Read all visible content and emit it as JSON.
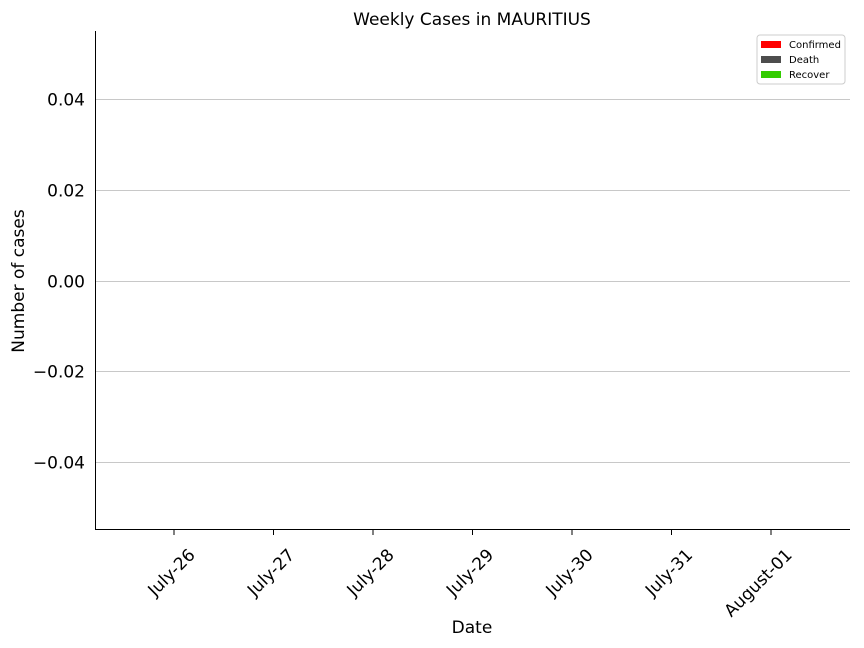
{
  "chart_data": {
    "type": "bar",
    "title": "Weekly Cases in MAURITIUS",
    "xlabel": "Date",
    "ylabel": "Number of cases",
    "categories": [
      "July-26",
      "July-27",
      "July-28",
      "July-29",
      "July-30",
      "July-31",
      "August-01"
    ],
    "ylim": [
      -0.055,
      0.055
    ],
    "yticks": [
      0.04,
      0.02,
      0.0,
      -0.02,
      -0.04
    ],
    "ytick_labels": [
      "0.04",
      "0.02",
      "0.00",
      "−0.02",
      "−0.04"
    ],
    "grid": "horizontal",
    "legend_position": "top-right",
    "series": [
      {
        "name": "Confirmed",
        "color": "#ff0000",
        "values": [
          0,
          0,
          0,
          0,
          0,
          0,
          0
        ]
      },
      {
        "name": "Death",
        "color": "#4d4d4d",
        "values": [
          0,
          0,
          0,
          0,
          0,
          0,
          0
        ]
      },
      {
        "name": "Recover",
        "color": "#33cc00",
        "values": [
          0,
          0,
          0,
          0,
          0,
          0,
          0
        ]
      }
    ]
  }
}
